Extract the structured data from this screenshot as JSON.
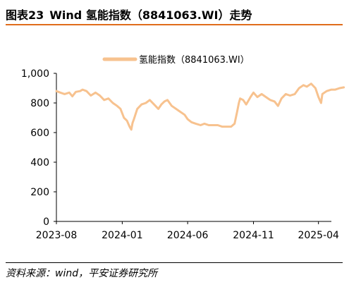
{
  "figure": {
    "number": "图表23",
    "title": "Wind 氢能指数（8841063.WI）走势",
    "source": "资料来源：wind，平安证券研究所"
  },
  "colors": {
    "line": "#f7c28f",
    "accent": "#e06c1b",
    "axis": "#000000"
  },
  "chart_data": {
    "type": "line",
    "title": "",
    "xlabel": "",
    "ylabel": "",
    "ylim": [
      0,
      1000
    ],
    "y_ticks": [
      0,
      200,
      400,
      600,
      800,
      1000
    ],
    "y_tick_labels": [
      "0",
      "200",
      "400",
      "600",
      "800",
      "1,000"
    ],
    "x_ticks": [
      "2023-08",
      "2024-01",
      "2024-06",
      "2024-11",
      "2025-04"
    ],
    "x_tick_labels": [
      "2023-08",
      "2024-01",
      "2024-06",
      "2024-11",
      "2025-04"
    ],
    "xlim": [
      "2023-08",
      "2025-05"
    ],
    "grid": false,
    "legend_position": "top-center",
    "series": [
      {
        "name": "氢能指数（8841063.WI）",
        "x": [
          "2023-08-01",
          "2023-08-10",
          "2023-08-20",
          "2023-08-31",
          "2023-09-07",
          "2023-09-15",
          "2023-09-25",
          "2023-10-01",
          "2023-10-10",
          "2023-10-20",
          "2023-10-31",
          "2023-11-10",
          "2023-11-20",
          "2023-11-30",
          "2023-12-10",
          "2023-12-20",
          "2023-12-28",
          "2024-01-05",
          "2024-01-12",
          "2024-01-18",
          "2024-01-22",
          "2024-01-25",
          "2024-01-28",
          "2024-02-05",
          "2024-02-15",
          "2024-02-25",
          "2024-03-05",
          "2024-03-15",
          "2024-03-25",
          "2024-04-01",
          "2024-04-08",
          "2024-04-15",
          "2024-04-25",
          "2024-05-05",
          "2024-05-15",
          "2024-05-25",
          "2024-06-01",
          "2024-06-10",
          "2024-06-20",
          "2024-07-01",
          "2024-07-10",
          "2024-07-20",
          "2024-08-01",
          "2024-08-10",
          "2024-08-20",
          "2024-09-01",
          "2024-09-10",
          "2024-09-18",
          "2024-09-24",
          "2024-09-28",
          "2024-10-01",
          "2024-10-08",
          "2024-10-15",
          "2024-10-25",
          "2024-11-01",
          "2024-11-10",
          "2024-11-20",
          "2024-11-30",
          "2024-12-10",
          "2024-12-20",
          "2024-12-28",
          "2025-01-05",
          "2025-01-15",
          "2025-01-25",
          "2025-02-05",
          "2025-02-15",
          "2025-02-25",
          "2025-03-05",
          "2025-03-15",
          "2025-03-25",
          "2025-04-01",
          "2025-04-07",
          "2025-04-10",
          "2025-04-20",
          "2025-05-01",
          "2025-05-10",
          "2025-05-20",
          "2025-05-30"
        ],
        "values": [
          880,
          870,
          860,
          870,
          845,
          875,
          880,
          890,
          880,
          850,
          870,
          850,
          820,
          830,
          800,
          780,
          760,
          700,
          680,
          640,
          620,
          665,
          690,
          760,
          790,
          800,
          820,
          790,
          760,
          790,
          810,
          820,
          780,
          760,
          740,
          720,
          690,
          670,
          660,
          650,
          660,
          650,
          650,
          650,
          640,
          640,
          640,
          660,
          740,
          800,
          830,
          820,
          790,
          840,
          870,
          840,
          860,
          840,
          820,
          810,
          780,
          830,
          860,
          850,
          860,
          900,
          920,
          910,
          930,
          900,
          840,
          800,
          860,
          880,
          890,
          890,
          900,
          905
        ]
      }
    ]
  }
}
